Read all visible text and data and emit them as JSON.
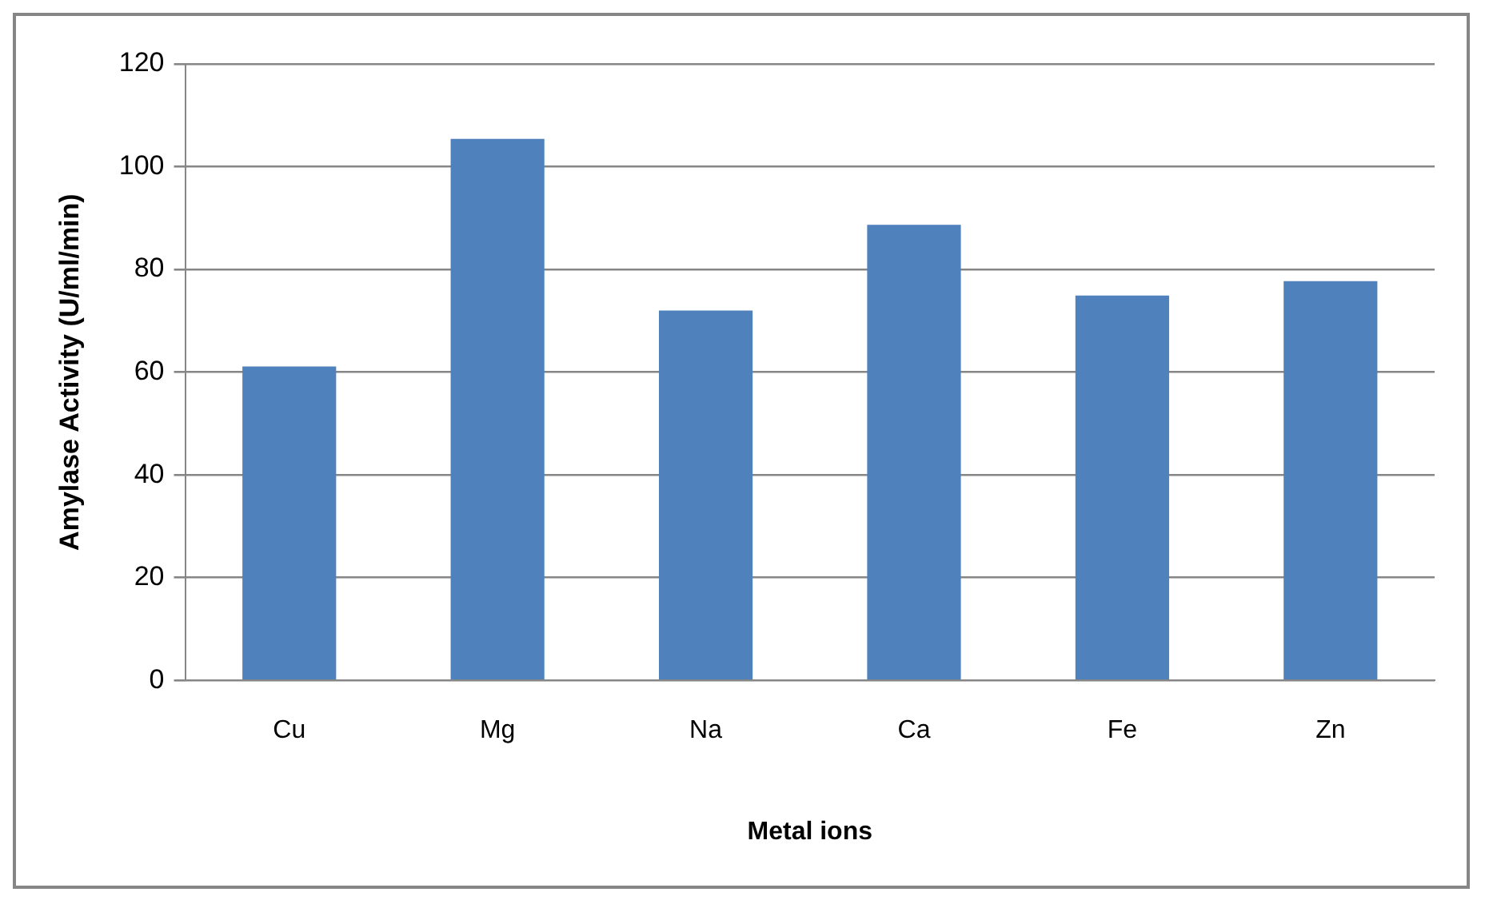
{
  "chart_data": {
    "type": "bar",
    "xlabel": "Metal ions",
    "ylabel": "Amylase Activity (U/ml/min)",
    "categories": [
      "Cu",
      "Mg",
      "Na",
      "Ca",
      "Fe",
      "Zn"
    ],
    "values": [
      61.1,
      105.4,
      72.0,
      88.7,
      74.9,
      77.7
    ],
    "color": "#4f81bd",
    "ylim": [
      0,
      120
    ],
    "yticks": [
      0,
      20,
      40,
      60,
      80,
      100,
      120
    ],
    "grid": "y",
    "legend": false
  }
}
